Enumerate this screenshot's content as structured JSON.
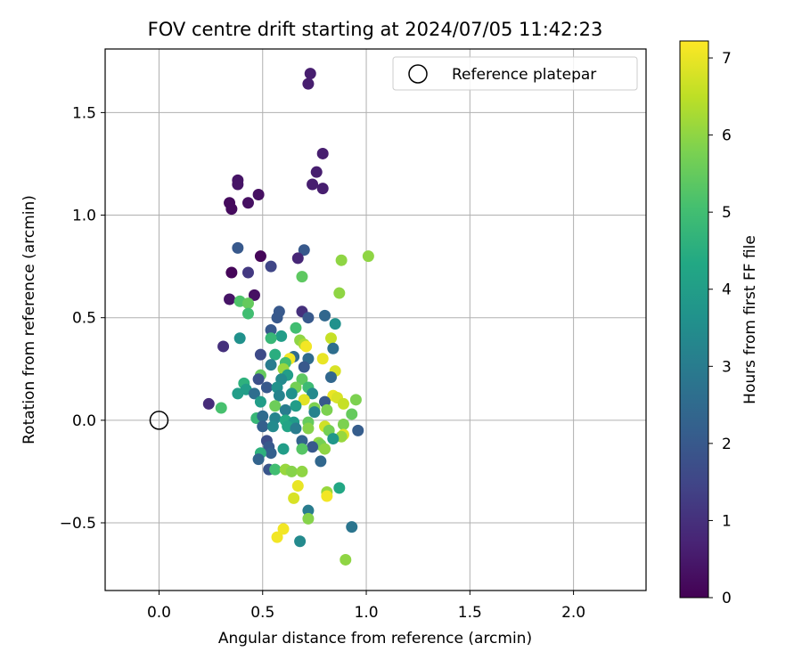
{
  "chart_data": {
    "type": "scatter",
    "title": "FOV centre drift starting at 2024/07/05 11:42:23",
    "xlabel": "Angular distance from reference (arcmin)",
    "ylabel": "Rotation from reference (arcmin)",
    "xlim": [
      -0.26,
      2.35
    ],
    "ylim": [
      -0.83,
      1.81
    ],
    "x_ticks": [
      0.0,
      0.5,
      1.0,
      1.5,
      2.0
    ],
    "y_ticks": [
      -0.5,
      0.0,
      0.5,
      1.0,
      1.5
    ],
    "x_tick_labels": [
      "0.0",
      "0.5",
      "1.0",
      "1.5",
      "2.0"
    ],
    "y_tick_labels": [
      "−0.5",
      "0.0",
      "0.5",
      "1.0",
      "1.5"
    ],
    "grid": true,
    "legend": {
      "placement": "top-right",
      "entries": [
        {
          "label": "Reference platepar",
          "marker": "open-circle"
        }
      ]
    },
    "reference_point": {
      "x": 0.0,
      "y": 0.0
    },
    "colorbar": {
      "label": "Hours from first FF file",
      "colormap": "viridis",
      "range": [
        0,
        7.22
      ],
      "ticks": [
        0,
        1,
        2,
        3,
        4,
        5,
        6,
        7
      ],
      "tick_labels": [
        "0",
        "1",
        "2",
        "3",
        "4",
        "5",
        "6",
        "7"
      ]
    },
    "points": [
      {
        "x": 0.73,
        "y": 1.69,
        "h": 0.6
      },
      {
        "x": 0.72,
        "y": 1.64,
        "h": 0.6
      },
      {
        "x": 0.79,
        "y": 1.3,
        "h": 0.6
      },
      {
        "x": 0.76,
        "y": 1.21,
        "h": 0.6
      },
      {
        "x": 0.38,
        "y": 1.17,
        "h": 0.4
      },
      {
        "x": 0.38,
        "y": 1.15,
        "h": 0.4
      },
      {
        "x": 0.48,
        "y": 1.1,
        "h": 0.3
      },
      {
        "x": 0.74,
        "y": 1.15,
        "h": 0.6
      },
      {
        "x": 0.79,
        "y": 1.13,
        "h": 0.6
      },
      {
        "x": 0.34,
        "y": 1.06,
        "h": 0.2
      },
      {
        "x": 0.43,
        "y": 1.06,
        "h": 0.3
      },
      {
        "x": 0.35,
        "y": 1.03,
        "h": 0.2
      },
      {
        "x": 0.38,
        "y": 0.84,
        "h": 2.0
      },
      {
        "x": 0.7,
        "y": 0.83,
        "h": 2.0
      },
      {
        "x": 0.49,
        "y": 0.8,
        "h": 0.1
      },
      {
        "x": 0.67,
        "y": 0.79,
        "h": 0.8
      },
      {
        "x": 0.54,
        "y": 0.75,
        "h": 1.5
      },
      {
        "x": 0.43,
        "y": 0.72,
        "h": 1.2
      },
      {
        "x": 0.35,
        "y": 0.72,
        "h": 0.1
      },
      {
        "x": 1.01,
        "y": 0.8,
        "h": 6.0
      },
      {
        "x": 0.88,
        "y": 0.78,
        "h": 6.0
      },
      {
        "x": 0.69,
        "y": 0.7,
        "h": 5.4
      },
      {
        "x": 0.87,
        "y": 0.62,
        "h": 6.0
      },
      {
        "x": 0.46,
        "y": 0.61,
        "h": 0.3
      },
      {
        "x": 0.34,
        "y": 0.59,
        "h": 0.4
      },
      {
        "x": 0.39,
        "y": 0.58,
        "h": 5.2
      },
      {
        "x": 0.43,
        "y": 0.57,
        "h": 5.5
      },
      {
        "x": 0.58,
        "y": 0.53,
        "h": 2.0
      },
      {
        "x": 0.69,
        "y": 0.53,
        "h": 1.0
      },
      {
        "x": 0.43,
        "y": 0.52,
        "h": 5.0
      },
      {
        "x": 0.57,
        "y": 0.5,
        "h": 2.0
      },
      {
        "x": 0.72,
        "y": 0.5,
        "h": 2.0
      },
      {
        "x": 0.8,
        "y": 0.51,
        "h": 2.4
      },
      {
        "x": 0.85,
        "y": 0.47,
        "h": 3.6
      },
      {
        "x": 0.66,
        "y": 0.45,
        "h": 5.0
      },
      {
        "x": 0.54,
        "y": 0.44,
        "h": 2.0
      },
      {
        "x": 0.59,
        "y": 0.41,
        "h": 4.0
      },
      {
        "x": 0.54,
        "y": 0.4,
        "h": 4.8
      },
      {
        "x": 0.39,
        "y": 0.4,
        "h": 3.6
      },
      {
        "x": 0.68,
        "y": 0.39,
        "h": 6.0
      },
      {
        "x": 0.83,
        "y": 0.4,
        "h": 6.6
      },
      {
        "x": 0.7,
        "y": 0.37,
        "h": 6.3
      },
      {
        "x": 0.71,
        "y": 0.36,
        "h": 7.1
      },
      {
        "x": 0.31,
        "y": 0.36,
        "h": 1.0
      },
      {
        "x": 0.84,
        "y": 0.35,
        "h": 2.6
      },
      {
        "x": 0.49,
        "y": 0.32,
        "h": 1.6
      },
      {
        "x": 0.56,
        "y": 0.32,
        "h": 4.5
      },
      {
        "x": 0.65,
        "y": 0.31,
        "h": 2.5
      },
      {
        "x": 0.72,
        "y": 0.3,
        "h": 2.5
      },
      {
        "x": 0.79,
        "y": 0.3,
        "h": 7.0
      },
      {
        "x": 0.63,
        "y": 0.3,
        "h": 7.1
      },
      {
        "x": 0.54,
        "y": 0.27,
        "h": 3.0
      },
      {
        "x": 0.61,
        "y": 0.28,
        "h": 5.0
      },
      {
        "x": 0.6,
        "y": 0.25,
        "h": 6.1
      },
      {
        "x": 0.7,
        "y": 0.26,
        "h": 2.0
      },
      {
        "x": 0.85,
        "y": 0.24,
        "h": 6.8
      },
      {
        "x": 0.49,
        "y": 0.22,
        "h": 5.5
      },
      {
        "x": 0.48,
        "y": 0.2,
        "h": 1.8
      },
      {
        "x": 0.62,
        "y": 0.22,
        "h": 4.0
      },
      {
        "x": 0.59,
        "y": 0.2,
        "h": 3.4
      },
      {
        "x": 0.69,
        "y": 0.2,
        "h": 5.4
      },
      {
        "x": 0.83,
        "y": 0.21,
        "h": 2.4
      },
      {
        "x": 0.52,
        "y": 0.16,
        "h": 2.0
      },
      {
        "x": 0.57,
        "y": 0.16,
        "h": 3.6
      },
      {
        "x": 0.66,
        "y": 0.16,
        "h": 5.7
      },
      {
        "x": 0.72,
        "y": 0.16,
        "h": 4.9
      },
      {
        "x": 0.41,
        "y": 0.18,
        "h": 4.6
      },
      {
        "x": 0.42,
        "y": 0.15,
        "h": 4.0
      },
      {
        "x": 0.46,
        "y": 0.13,
        "h": 2.6
      },
      {
        "x": 0.38,
        "y": 0.13,
        "h": 4.0
      },
      {
        "x": 0.58,
        "y": 0.12,
        "h": 3.2
      },
      {
        "x": 0.64,
        "y": 0.13,
        "h": 3.6
      },
      {
        "x": 0.74,
        "y": 0.13,
        "h": 3.4
      },
      {
        "x": 0.84,
        "y": 0.12,
        "h": 7.0
      },
      {
        "x": 0.86,
        "y": 0.11,
        "h": 6.8
      },
      {
        "x": 0.89,
        "y": 0.08,
        "h": 6.6
      },
      {
        "x": 0.95,
        "y": 0.1,
        "h": 5.8
      },
      {
        "x": 0.8,
        "y": 0.09,
        "h": 2.0
      },
      {
        "x": 0.7,
        "y": 0.1,
        "h": 6.9
      },
      {
        "x": 0.24,
        "y": 0.08,
        "h": 0.9
      },
      {
        "x": 0.3,
        "y": 0.06,
        "h": 5.1
      },
      {
        "x": 0.49,
        "y": 0.09,
        "h": 4.0
      },
      {
        "x": 0.56,
        "y": 0.07,
        "h": 5.6
      },
      {
        "x": 0.61,
        "y": 0.05,
        "h": 3.0
      },
      {
        "x": 0.66,
        "y": 0.07,
        "h": 4.0
      },
      {
        "x": 0.75,
        "y": 0.06,
        "h": 5.8
      },
      {
        "x": 0.81,
        "y": 0.05,
        "h": 5.8
      },
      {
        "x": 0.75,
        "y": 0.04,
        "h": 3.2
      },
      {
        "x": 0.93,
        "y": 0.03,
        "h": 5.5
      },
      {
        "x": 0.47,
        "y": 0.01,
        "h": 4.8
      },
      {
        "x": 0.5,
        "y": 0.02,
        "h": 2.5
      },
      {
        "x": 0.56,
        "y": 0.01,
        "h": 3.2
      },
      {
        "x": 0.61,
        "y": 0.0,
        "h": 4.4
      },
      {
        "x": 0.65,
        "y": -0.01,
        "h": 3.9
      },
      {
        "x": 0.72,
        "y": -0.01,
        "h": 5.5
      },
      {
        "x": 0.8,
        "y": -0.03,
        "h": 6.7
      },
      {
        "x": 0.89,
        "y": -0.02,
        "h": 5.8
      },
      {
        "x": 0.96,
        "y": -0.05,
        "h": 2.1
      },
      {
        "x": 0.5,
        "y": -0.03,
        "h": 2.2
      },
      {
        "x": 0.55,
        "y": -0.03,
        "h": 3.4
      },
      {
        "x": 0.62,
        "y": -0.03,
        "h": 4.2
      },
      {
        "x": 0.66,
        "y": -0.04,
        "h": 3.0
      },
      {
        "x": 0.72,
        "y": -0.04,
        "h": 5.9
      },
      {
        "x": 0.82,
        "y": -0.05,
        "h": 5.7
      },
      {
        "x": 0.89,
        "y": -0.07,
        "h": 6.9
      },
      {
        "x": 0.88,
        "y": -0.08,
        "h": 6.1
      },
      {
        "x": 0.84,
        "y": -0.09,
        "h": 3.8
      },
      {
        "x": 0.52,
        "y": -0.1,
        "h": 1.7
      },
      {
        "x": 0.69,
        "y": -0.1,
        "h": 2.3
      },
      {
        "x": 0.77,
        "y": -0.11,
        "h": 6.0
      },
      {
        "x": 0.78,
        "y": -0.12,
        "h": 5.7
      },
      {
        "x": 0.74,
        "y": -0.13,
        "h": 2.0
      },
      {
        "x": 0.53,
        "y": -0.13,
        "h": 2.0
      },
      {
        "x": 0.6,
        "y": -0.14,
        "h": 4.0
      },
      {
        "x": 0.69,
        "y": -0.14,
        "h": 5.3
      },
      {
        "x": 0.8,
        "y": -0.14,
        "h": 6.0
      },
      {
        "x": 0.54,
        "y": -0.16,
        "h": 2.2
      },
      {
        "x": 0.49,
        "y": -0.16,
        "h": 4.6
      },
      {
        "x": 0.48,
        "y": -0.19,
        "h": 2.3
      },
      {
        "x": 0.78,
        "y": -0.2,
        "h": 2.4
      },
      {
        "x": 0.53,
        "y": -0.24,
        "h": 1.9
      },
      {
        "x": 0.56,
        "y": -0.24,
        "h": 5.0
      },
      {
        "x": 0.61,
        "y": -0.24,
        "h": 6.1
      },
      {
        "x": 0.64,
        "y": -0.25,
        "h": 5.9
      },
      {
        "x": 0.69,
        "y": -0.25,
        "h": 6.0
      },
      {
        "x": 0.67,
        "y": -0.32,
        "h": 7.0
      },
      {
        "x": 0.87,
        "y": -0.33,
        "h": 4.3
      },
      {
        "x": 0.81,
        "y": -0.35,
        "h": 6.1
      },
      {
        "x": 0.81,
        "y": -0.37,
        "h": 7.1
      },
      {
        "x": 0.65,
        "y": -0.38,
        "h": 6.8
      },
      {
        "x": 0.72,
        "y": -0.44,
        "h": 3.0
      },
      {
        "x": 0.72,
        "y": -0.48,
        "h": 5.9
      },
      {
        "x": 0.93,
        "y": -0.52,
        "h": 2.8
      },
      {
        "x": 0.6,
        "y": -0.53,
        "h": 7.1
      },
      {
        "x": 0.57,
        "y": -0.57,
        "h": 7.1
      },
      {
        "x": 0.68,
        "y": -0.59,
        "h": 3.4
      },
      {
        "x": 0.9,
        "y": -0.68,
        "h": 6.0
      }
    ]
  }
}
